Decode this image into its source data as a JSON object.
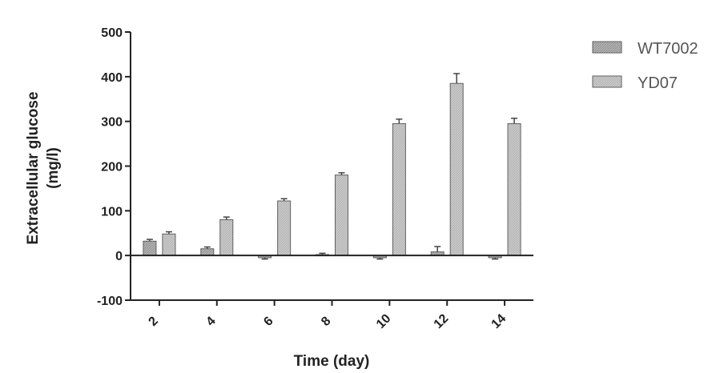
{
  "chart_data": {
    "type": "bar",
    "title": "",
    "xlabel": "Time (day)",
    "ylabel_line1": "Extracellular glucose",
    "ylabel_line2": "(mg/l)",
    "categories": [
      "2",
      "4",
      "6",
      "8",
      "10",
      "12",
      "14"
    ],
    "ylim": [
      -100,
      500
    ],
    "yticks": [
      "-100",
      "0",
      "100",
      "200",
      "300",
      "400",
      "500"
    ],
    "legend_position": "top-right",
    "series": [
      {
        "name": "WT7002",
        "values": [
          32,
          15,
          -5,
          2,
          -5,
          8,
          -5
        ],
        "errors": [
          4,
          4,
          3,
          3,
          3,
          12,
          3
        ],
        "color": "#9a9a9a"
      },
      {
        "name": "YD07",
        "values": [
          48,
          80,
          122,
          180,
          295,
          385,
          295
        ],
        "errors": [
          5,
          6,
          5,
          5,
          10,
          22,
          12
        ],
        "color": "#b8b8b8"
      }
    ]
  }
}
